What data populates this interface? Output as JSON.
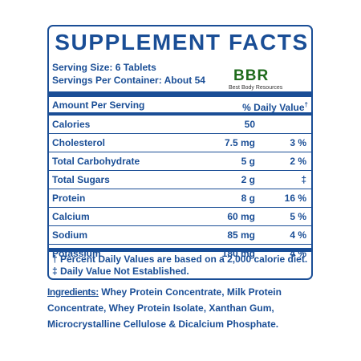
{
  "panel": {
    "title": "SUPPLEMENT FACTS",
    "serving_size": "Serving Size: 6 Tablets",
    "servings_per_container": "Servings Per Container: About 54",
    "header": {
      "amount_label": "Amount Per Serving",
      "daily_value_label": "% Daily Value",
      "daily_value_mark": "†"
    },
    "rows": [
      {
        "name": "Calories",
        "amount": "50",
        "dv": ""
      },
      {
        "name": "Cholesterol",
        "amount": "7.5 mg",
        "dv": "3 %"
      },
      {
        "name": "Total Carbohydrate",
        "amount": "5 g",
        "dv": "2 %"
      },
      {
        "name": "Total Sugars",
        "amount": "2 g",
        "dv": "‡"
      },
      {
        "name": "Protein",
        "amount": "8 g",
        "dv": "16 %"
      },
      {
        "name": "Calcium",
        "amount": "60 mg",
        "dv": "5 %"
      },
      {
        "name": "Sodium",
        "amount": "85 mg",
        "dv": "4 %"
      },
      {
        "name": "Potassium",
        "amount": "180 mg",
        "dv": "4 %"
      }
    ],
    "footnote_1": "† Percent Daily Values are based on a 2,000 calorie diet.",
    "footnote_2": "‡ Daily Value Not Established."
  },
  "watermark": {
    "logo": "BBR",
    "subtitle": "Best Body Resources"
  },
  "ingredients": {
    "label": "Ingredients:",
    "text": " Whey Protein Concentrate, Milk Protein Concentrate, Whey Protein Isolate, Xanthan Gum, Microcrystalline Cellulose & Dicalcium Phosphate."
  },
  "colors": {
    "brand_blue": "#1a4e96",
    "watermark_green": "#1f6b1c"
  }
}
